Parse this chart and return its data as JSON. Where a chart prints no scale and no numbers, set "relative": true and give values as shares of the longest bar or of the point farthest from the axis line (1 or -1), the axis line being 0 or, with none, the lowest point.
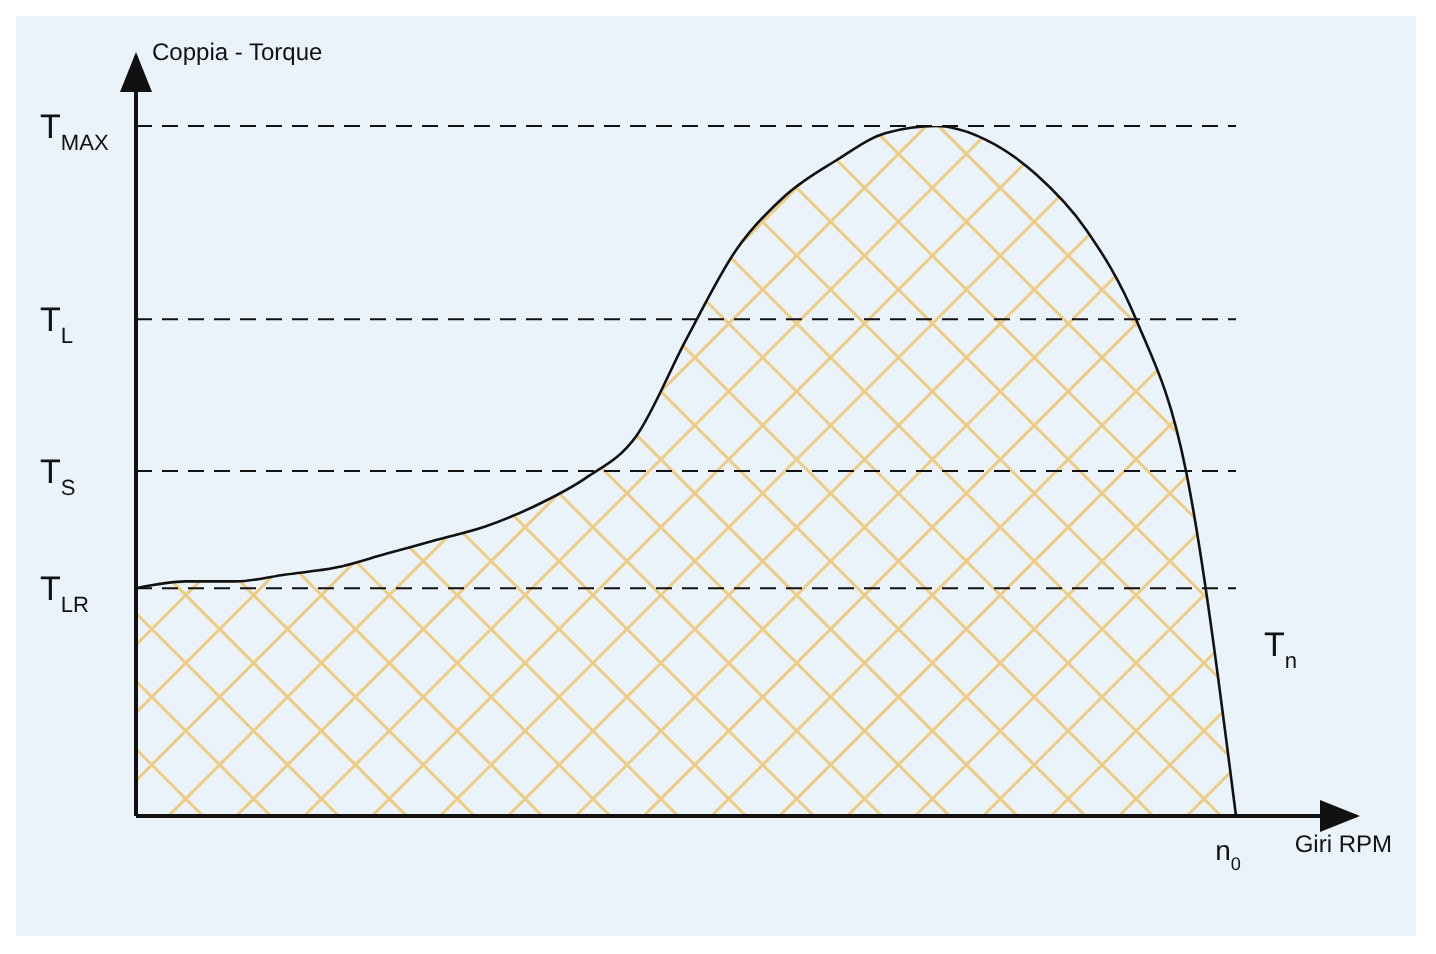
{
  "chart_data": {
    "type": "area",
    "relative": true,
    "ylabel": "Coppia - Torque",
    "xlabel": "Giri RPM",
    "color": "#f2b233",
    "categories": [
      null,
      null,
      null,
      null,
      null,
      null,
      null,
      null,
      null,
      null,
      null,
      null,
      null,
      null,
      null,
      null,
      null,
      null,
      null,
      null,
      null,
      null,
      null
    ],
    "values": [
      0.33,
      0.34,
      0.34,
      0.35,
      0.36,
      0.38,
      0.4,
      0.42,
      0.45,
      0.49,
      0.55,
      0.69,
      0.82,
      0.9,
      0.95,
      0.99,
      1,
      0.98,
      0.93,
      0.85,
      0.72,
      0.5,
      0
    ],
    "ref_lines": [
      {
        "axis": "y",
        "value": 1,
        "label": "T$_{MAX}$",
        "line_style": "dashed"
      },
      {
        "axis": "y",
        "value": 0.72,
        "label": "T$_{L}$",
        "line_style": "dashed"
      },
      {
        "axis": "y",
        "value": 0.5,
        "label": "T$_{S}$",
        "line_style": "dashed"
      },
      {
        "axis": "y",
        "value": 0.33,
        "label": "T$_{LR}$",
        "line_style": "dashed"
      }
    ],
    "annotations": [
      "T$_{n}$",
      "n$_{0}$"
    ],
    "grid": false,
    "legend": false
  }
}
